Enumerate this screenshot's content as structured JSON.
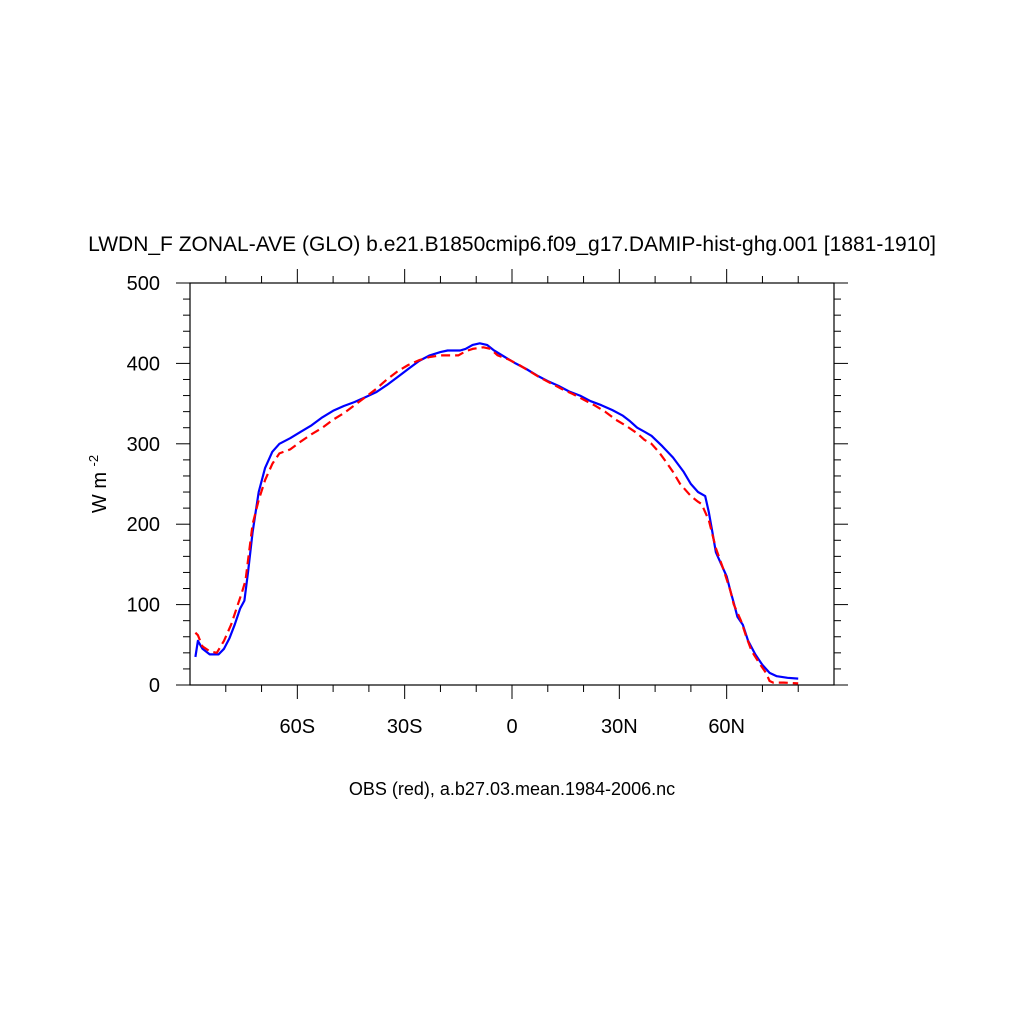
{
  "chart_data": {
    "type": "line",
    "title": "LWDN_F ZONAL-AVE (GLO) b.e21.B1850cmip6.f09_g17.DAMIP-hist-ghg.001 [1881-1910]",
    "ylabel_main": "W m",
    "ylabel_exp": "-2",
    "xlabel": "OBS (red), a.b27.03.mean.1984-2006.nc",
    "xlim": [
      -90,
      90
    ],
    "ylim": [
      0,
      500
    ],
    "x_ticks": [
      {
        "value": -60,
        "label": "60S"
      },
      {
        "value": -30,
        "label": "30S"
      },
      {
        "value": 0,
        "label": "0"
      },
      {
        "value": 30,
        "label": "30N"
      },
      {
        "value": 60,
        "label": "60N"
      }
    ],
    "y_ticks": [
      {
        "value": 0,
        "label": "0"
      },
      {
        "value": 100,
        "label": "100"
      },
      {
        "value": 200,
        "label": "200"
      },
      {
        "value": 300,
        "label": "300"
      },
      {
        "value": 400,
        "label": "400"
      },
      {
        "value": 500,
        "label": "500"
      }
    ],
    "grid": false,
    "series": [
      {
        "color": "#0000ff",
        "dash": "solid",
        "points": [
          [
            -88.5,
            35
          ],
          [
            -87.8,
            55
          ],
          [
            -86.5,
            45
          ],
          [
            -84.5,
            38
          ],
          [
            -82,
            38
          ],
          [
            -80.5,
            45
          ],
          [
            -79,
            58
          ],
          [
            -77.5,
            75
          ],
          [
            -76,
            95
          ],
          [
            -74.8,
            105
          ],
          [
            -73.8,
            140
          ],
          [
            -72.5,
            190
          ],
          [
            -70.8,
            240
          ],
          [
            -69,
            270
          ],
          [
            -67,
            290
          ],
          [
            -65,
            300
          ],
          [
            -62,
            307
          ],
          [
            -59,
            315
          ],
          [
            -56,
            323
          ],
          [
            -53,
            333
          ],
          [
            -50,
            341
          ],
          [
            -47,
            347
          ],
          [
            -44,
            352
          ],
          [
            -41,
            358
          ],
          [
            -38,
            364
          ],
          [
            -35,
            373
          ],
          [
            -32,
            383
          ],
          [
            -29,
            393
          ],
          [
            -26,
            403
          ],
          [
            -23,
            410
          ],
          [
            -20,
            414
          ],
          [
            -18,
            416
          ],
          [
            -14.5,
            416
          ],
          [
            -13,
            418
          ],
          [
            -11,
            423
          ],
          [
            -9,
            425
          ],
          [
            -7,
            423
          ],
          [
            -5,
            416
          ],
          [
            -2,
            408
          ],
          [
            1,
            400
          ],
          [
            4,
            393
          ],
          [
            7,
            385
          ],
          [
            10,
            378
          ],
          [
            13,
            372
          ],
          [
            16,
            365
          ],
          [
            19,
            360
          ],
          [
            22,
            353
          ],
          [
            25,
            348
          ],
          [
            28,
            342
          ],
          [
            31,
            335
          ],
          [
            33,
            328
          ],
          [
            35,
            320
          ],
          [
            37,
            315
          ],
          [
            39,
            310
          ],
          [
            42,
            297
          ],
          [
            45,
            283
          ],
          [
            48,
            265
          ],
          [
            50,
            250
          ],
          [
            52,
            240
          ],
          [
            54,
            235
          ],
          [
            55,
            215
          ],
          [
            56,
            190
          ],
          [
            57,
            165
          ],
          [
            58.5,
            150
          ],
          [
            60,
            135
          ],
          [
            61,
            118
          ],
          [
            62,
            102
          ],
          [
            63,
            85
          ],
          [
            64.5,
            75
          ],
          [
            66,
            55
          ],
          [
            68,
            38
          ],
          [
            70,
            25
          ],
          [
            72,
            15
          ],
          [
            74,
            11
          ],
          [
            77,
            9
          ],
          [
            80,
            8
          ]
        ]
      },
      {
        "color": "#ff0000",
        "dash": "dashed",
        "points": [
          [
            -88.5,
            65
          ],
          [
            -87.8,
            62
          ],
          [
            -86.5,
            48
          ],
          [
            -84.5,
            42
          ],
          [
            -82.5,
            40
          ],
          [
            -80.5,
            55
          ],
          [
            -78.5,
            75
          ],
          [
            -77,
            95
          ],
          [
            -75.5,
            115
          ],
          [
            -74.5,
            130
          ],
          [
            -73.8,
            155
          ],
          [
            -72.5,
            200
          ],
          [
            -70.8,
            230
          ],
          [
            -69,
            255
          ],
          [
            -67,
            275
          ],
          [
            -65,
            288
          ],
          [
            -62,
            293
          ],
          [
            -59,
            303
          ],
          [
            -56,
            312
          ],
          [
            -53,
            320
          ],
          [
            -50,
            330
          ],
          [
            -47,
            338
          ],
          [
            -44,
            348
          ],
          [
            -41,
            358
          ],
          [
            -38,
            368
          ],
          [
            -35,
            380
          ],
          [
            -32,
            390
          ],
          [
            -29,
            398
          ],
          [
            -26,
            404
          ],
          [
            -23,
            408
          ],
          [
            -20,
            410
          ],
          [
            -15,
            410
          ],
          [
            -13,
            415
          ],
          [
            -11,
            418
          ],
          [
            -8,
            420
          ],
          [
            -6,
            418
          ],
          [
            -4,
            410
          ],
          [
            -1,
            405
          ],
          [
            2,
            398
          ],
          [
            5,
            390
          ],
          [
            8,
            382
          ],
          [
            11,
            375
          ],
          [
            14,
            368
          ],
          [
            17,
            362
          ],
          [
            20,
            355
          ],
          [
            23,
            348
          ],
          [
            26,
            340
          ],
          [
            29,
            330
          ],
          [
            32,
            322
          ],
          [
            35,
            313
          ],
          [
            37,
            305
          ],
          [
            39,
            300
          ],
          [
            41,
            290
          ],
          [
            43,
            278
          ],
          [
            45,
            265
          ],
          [
            47,
            250
          ],
          [
            50,
            235
          ],
          [
            52,
            228
          ],
          [
            53,
            225
          ],
          [
            55,
            205
          ],
          [
            57,
            170
          ],
          [
            59,
            145
          ],
          [
            61,
            118
          ],
          [
            62,
            100
          ],
          [
            63,
            90
          ],
          [
            64,
            80
          ],
          [
            65.5,
            60
          ],
          [
            67,
            42
          ],
          [
            69,
            28
          ],
          [
            71,
            15
          ],
          [
            72,
            5
          ],
          [
            73,
            3
          ],
          [
            76,
            3
          ],
          [
            80,
            2
          ]
        ]
      }
    ]
  }
}
